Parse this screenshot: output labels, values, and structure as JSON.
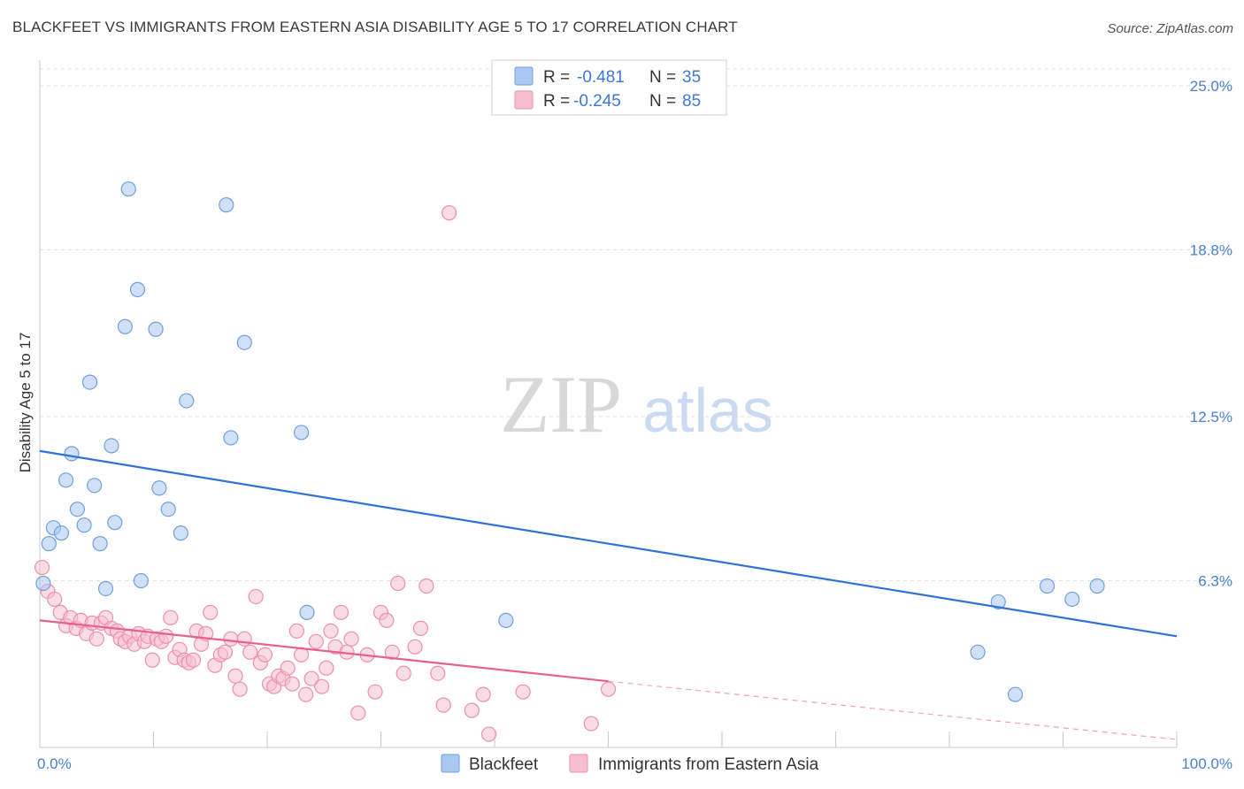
{
  "title": "BLACKFEET VS IMMIGRANTS FROM EASTERN ASIA DISABILITY AGE 5 TO 17 CORRELATION CHART",
  "source": "Source: ZipAtlas.com",
  "watermark": {
    "zip": "ZIP",
    "atlas": "atlas"
  },
  "colors": {
    "blue_fill": "#a9c8f0",
    "blue_stroke": "#6fa0e0",
    "blue_line": "#2f72d6",
    "pink_fill": "#f6bfd0",
    "pink_stroke": "#ee8fae",
    "pink_line": "#e8608c"
  },
  "legend": {
    "rows": [
      {
        "r_label": "R =",
        "r_value": "-0.481",
        "n_label": "N =",
        "n_value": "35"
      },
      {
        "r_label": "R =",
        "r_value": "-0.245",
        "n_label": "N =",
        "n_value": "85"
      }
    ]
  },
  "bottom_legend": {
    "series1": "Blackfeet",
    "series2": "Immigrants from Eastern Asia"
  },
  "chart_data": {
    "type": "scatter",
    "title": "BLACKFEET VS IMMIGRANTS FROM EASTERN ASIA DISABILITY AGE 5 TO 17 CORRELATION CHART",
    "xlabel": "",
    "ylabel": "Disability Age 5 to 17",
    "xlim": [
      0,
      100
    ],
    "ylim": [
      0,
      25
    ],
    "x_tick_labels": [
      "0.0%",
      "100.0%"
    ],
    "y_ticks": [
      6.3,
      12.5,
      18.8,
      25.0
    ],
    "y_tick_labels": [
      "6.3%",
      "12.5%",
      "18.8%",
      "25.0%"
    ],
    "series": [
      {
        "name": "Blackfeet",
        "r": -0.481,
        "n": 35,
        "trend": {
          "x0": 0,
          "y0": 11.2,
          "x1": 100,
          "y1": 4.2
        },
        "points": [
          [
            0.3,
            6.2
          ],
          [
            0.8,
            7.7
          ],
          [
            1.2,
            8.3
          ],
          [
            1.9,
            8.1
          ],
          [
            2.3,
            10.1
          ],
          [
            2.8,
            11.1
          ],
          [
            3.3,
            9.0
          ],
          [
            3.9,
            8.4
          ],
          [
            4.4,
            13.8
          ],
          [
            4.8,
            9.9
          ],
          [
            5.3,
            7.7
          ],
          [
            5.8,
            6.0
          ],
          [
            6.3,
            11.4
          ],
          [
            6.6,
            8.5
          ],
          [
            7.5,
            15.9
          ],
          [
            7.8,
            21.1
          ],
          [
            8.6,
            17.3
          ],
          [
            8.9,
            6.3
          ],
          [
            10.2,
            15.8
          ],
          [
            10.5,
            9.8
          ],
          [
            11.3,
            9.0
          ],
          [
            12.4,
            8.1
          ],
          [
            12.9,
            13.1
          ],
          [
            16.4,
            20.5
          ],
          [
            16.8,
            11.7
          ],
          [
            18.0,
            15.3
          ],
          [
            23.0,
            11.9
          ],
          [
            23.5,
            5.1
          ],
          [
            41.0,
            4.8
          ],
          [
            82.5,
            3.6
          ],
          [
            84.3,
            5.5
          ],
          [
            85.8,
            2.0
          ],
          [
            88.6,
            6.1
          ],
          [
            90.8,
            5.6
          ],
          [
            93.0,
            6.1
          ]
        ]
      },
      {
        "name": "Immigrants from Eastern Asia",
        "r": -0.245,
        "n": 85,
        "trend": {
          "x0": 0,
          "y0": 4.8,
          "x1": 50,
          "y1": 2.5
        },
        "trend_dashed": {
          "x0": 50,
          "y0": 2.5,
          "x1": 100,
          "y1": 0.3
        },
        "points": [
          [
            0.2,
            6.8
          ],
          [
            0.7,
            5.9
          ],
          [
            1.3,
            5.6
          ],
          [
            1.8,
            5.1
          ],
          [
            2.3,
            4.6
          ],
          [
            2.7,
            4.9
          ],
          [
            3.2,
            4.5
          ],
          [
            3.6,
            4.8
          ],
          [
            4.1,
            4.3
          ],
          [
            4.6,
            4.7
          ],
          [
            5.0,
            4.1
          ],
          [
            5.4,
            4.7
          ],
          [
            5.8,
            4.9
          ],
          [
            6.3,
            4.5
          ],
          [
            6.8,
            4.4
          ],
          [
            7.1,
            4.1
          ],
          [
            7.5,
            4.0
          ],
          [
            7.9,
            4.2
          ],
          [
            8.3,
            3.9
          ],
          [
            8.7,
            4.3
          ],
          [
            9.2,
            4.0
          ],
          [
            9.5,
            4.2
          ],
          [
            9.9,
            3.3
          ],
          [
            10.3,
            4.1
          ],
          [
            10.7,
            4.0
          ],
          [
            11.1,
            4.2
          ],
          [
            11.5,
            4.9
          ],
          [
            11.9,
            3.4
          ],
          [
            12.3,
            3.7
          ],
          [
            12.7,
            3.3
          ],
          [
            13.1,
            3.2
          ],
          [
            13.5,
            3.3
          ],
          [
            13.8,
            4.4
          ],
          [
            14.2,
            3.9
          ],
          [
            14.6,
            4.3
          ],
          [
            15.0,
            5.1
          ],
          [
            15.4,
            3.1
          ],
          [
            15.9,
            3.5
          ],
          [
            16.3,
            3.6
          ],
          [
            16.8,
            4.1
          ],
          [
            17.2,
            2.7
          ],
          [
            17.6,
            2.2
          ],
          [
            18.0,
            4.1
          ],
          [
            18.5,
            3.6
          ],
          [
            19.0,
            5.7
          ],
          [
            19.4,
            3.2
          ],
          [
            19.8,
            3.5
          ],
          [
            20.2,
            2.4
          ],
          [
            20.6,
            2.3
          ],
          [
            21.0,
            2.7
          ],
          [
            21.4,
            2.6
          ],
          [
            21.8,
            3.0
          ],
          [
            22.2,
            2.4
          ],
          [
            22.6,
            4.4
          ],
          [
            23.0,
            3.5
          ],
          [
            23.4,
            2.0
          ],
          [
            23.9,
            2.6
          ],
          [
            24.3,
            4.0
          ],
          [
            24.8,
            2.3
          ],
          [
            25.2,
            3.0
          ],
          [
            25.6,
            4.4
          ],
          [
            26.0,
            3.8
          ],
          [
            26.5,
            5.1
          ],
          [
            27.0,
            3.6
          ],
          [
            27.4,
            4.1
          ],
          [
            28.0,
            1.3
          ],
          [
            28.8,
            3.5
          ],
          [
            29.5,
            2.1
          ],
          [
            30.0,
            5.1
          ],
          [
            30.5,
            4.8
          ],
          [
            31.0,
            3.6
          ],
          [
            31.5,
            6.2
          ],
          [
            32.0,
            2.8
          ],
          [
            33.0,
            3.8
          ],
          [
            33.5,
            4.5
          ],
          [
            34.0,
            6.1
          ],
          [
            35.0,
            2.8
          ],
          [
            35.5,
            1.6
          ],
          [
            36.0,
            20.2
          ],
          [
            38.0,
            1.4
          ],
          [
            39.0,
            2.0
          ],
          [
            39.5,
            0.5
          ],
          [
            42.5,
            2.1
          ],
          [
            48.5,
            0.9
          ],
          [
            50.0,
            2.2
          ]
        ]
      }
    ]
  }
}
